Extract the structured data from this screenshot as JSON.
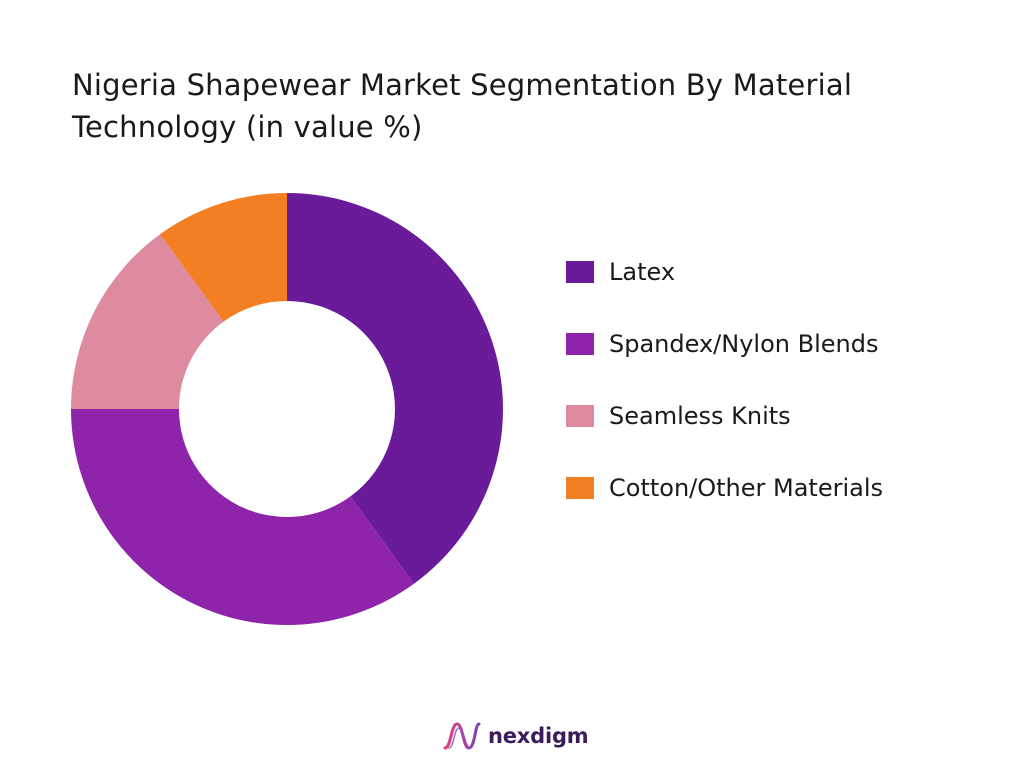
{
  "chart_data": {
    "type": "pie",
    "style": "donut",
    "title": "Nigeria Shapewear Market Segmentation By Material Technology (in value %)",
    "categories": [
      "Latex",
      "Spandex/Nylon Blends",
      "Seamless Knits",
      "Cotton/Other Materials"
    ],
    "values": [
      40,
      35,
      15,
      10
    ],
    "colors": [
      "#6A1B9A",
      "#8E24AA",
      "#DE8A9F",
      "#F37F22"
    ],
    "legend_position": "right",
    "start_angle": "top",
    "direction": "clockwise"
  },
  "brand": {
    "name": "nexdigm",
    "logo_icon": "nexdigm-wave-icon"
  }
}
